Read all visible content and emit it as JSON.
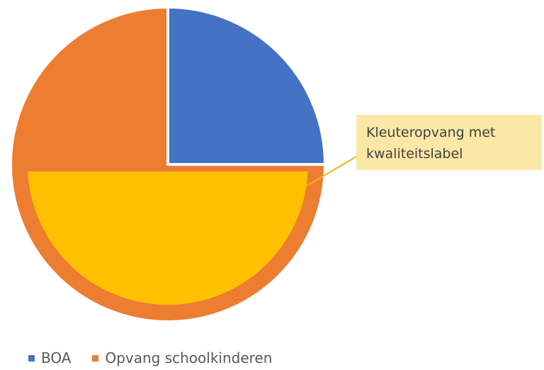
{
  "chart_data": {
    "type": "pie",
    "categories": [
      "BOA",
      "Opvang schoolkinderen"
    ],
    "values": [
      25,
      75
    ],
    "colors": [
      "#4472c4",
      "#ed7d31"
    ],
    "sub_area": {
      "label": "Kleuteropvang met kwaliteitslabel",
      "share_of_whole": 0.5,
      "color": "#ffc000",
      "within": "Opvang schoolkinderen"
    },
    "legend_position": "bottom",
    "title": ""
  },
  "legend": [
    {
      "label": "BOA",
      "color": "#4472c4"
    },
    {
      "label": "Opvang schoolkinderen",
      "color": "#ed7d31"
    }
  ],
  "callout": {
    "text": "Kleuteropvang met kwaliteitslabel",
    "color": "#fbe8a6",
    "line_color": "#e6b817"
  }
}
